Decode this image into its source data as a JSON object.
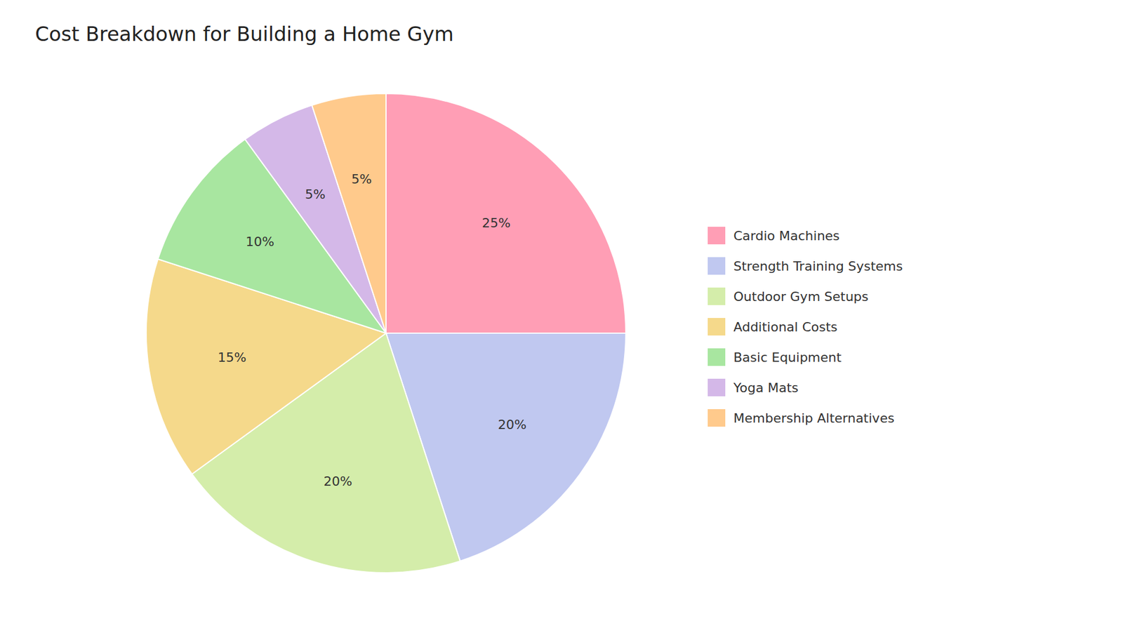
{
  "chart_data": {
    "type": "pie",
    "title": "Cost Breakdown for Building a Home Gym",
    "categories": [
      "Cardio Machines",
      "Strength Training Systems",
      "Outdoor Gym Setups",
      "Additional Costs",
      "Basic Equipment",
      "Yoga Mats",
      "Membership Alternatives"
    ],
    "values": [
      25,
      20,
      20,
      15,
      10,
      5,
      5
    ],
    "value_labels": [
      "25%",
      "20%",
      "20%",
      "15%",
      "10%",
      "5%",
      "5%"
    ],
    "colors": [
      "#FF9EB5",
      "#C0C8F0",
      "#D4EDAA",
      "#F5D98B",
      "#A8E6A0",
      "#D4B8E8",
      "#FFCA8C"
    ],
    "data_labels": true,
    "legend": "right"
  }
}
